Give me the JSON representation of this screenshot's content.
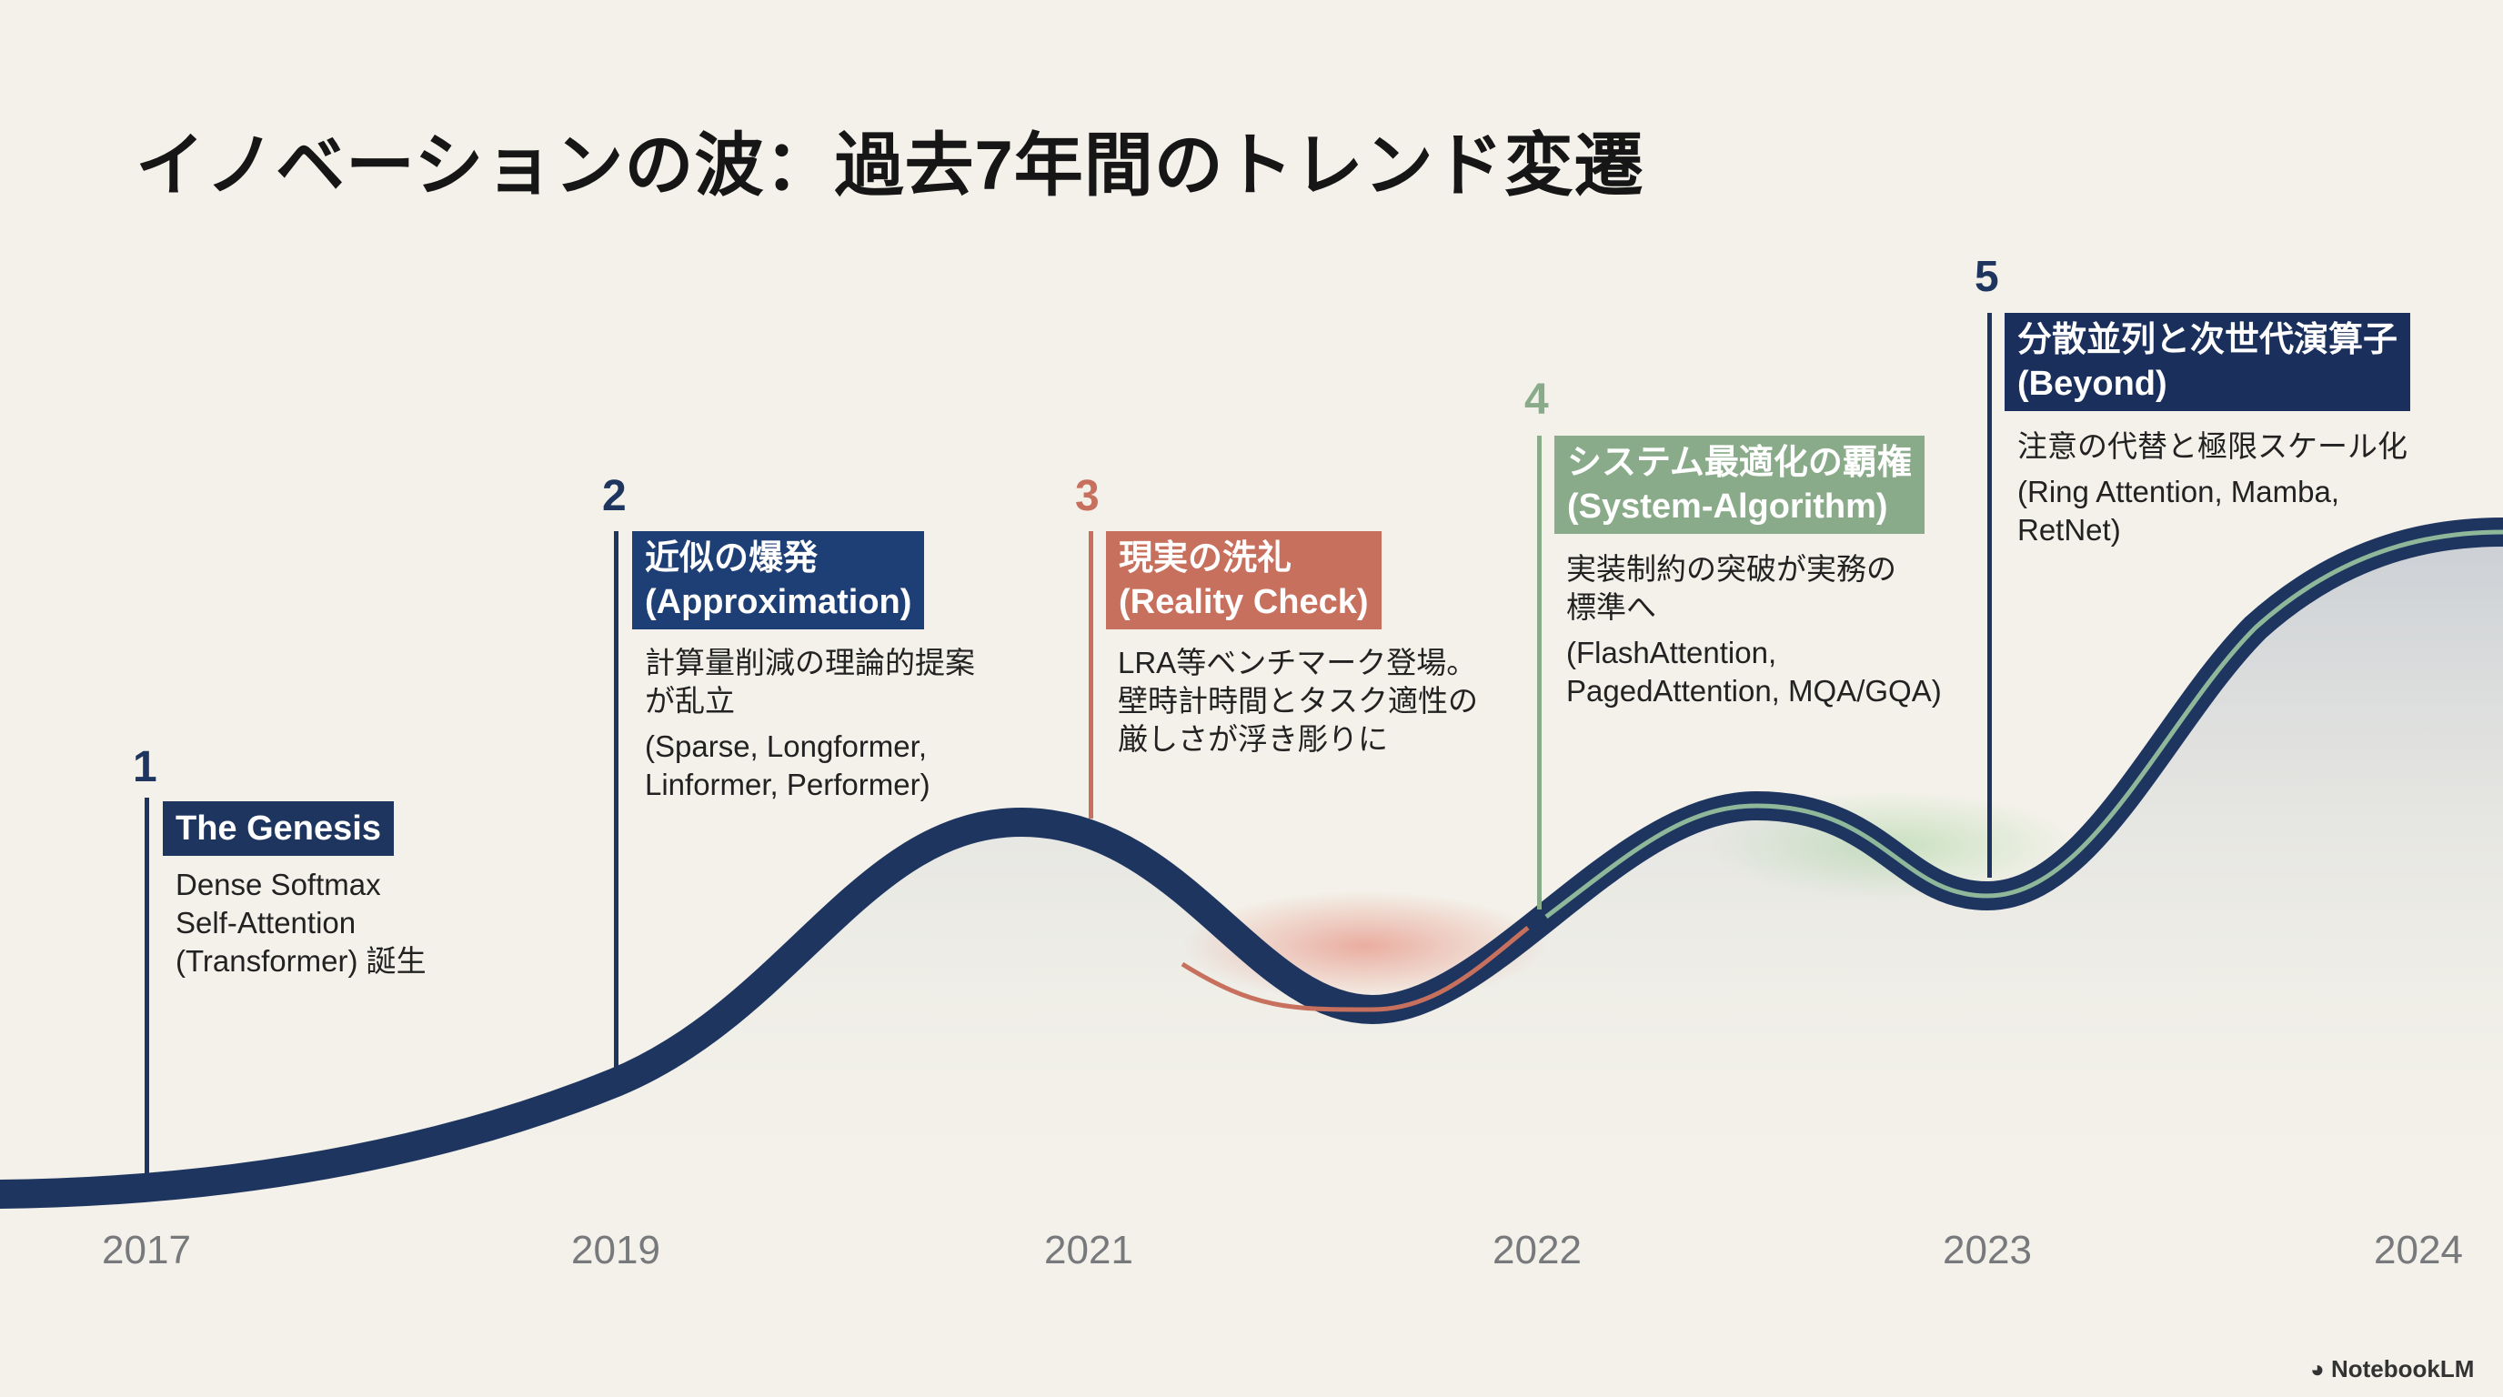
{
  "title": "イノベーションの波：過去7年間のトレンド変遷",
  "colors": {
    "navy": "#1e3560",
    "red": "#c8705e",
    "green": "#8aab8a",
    "background": "#f3f1e9"
  },
  "milestones": [
    {
      "number": "1",
      "heading": "The Genesis",
      "desc": [
        "Dense Softmax",
        "Self-Attention",
        "(Transformer) 誕生"
      ],
      "models": []
    },
    {
      "number": "2",
      "heading": "近似の爆発",
      "heading_en": "(Approximation)",
      "desc": [
        "計算量削減の理論的提案",
        "が乱立"
      ],
      "models": [
        "(Sparse, Longformer,",
        "Linformer, Performer)"
      ]
    },
    {
      "number": "3",
      "heading": "現実の洗礼",
      "heading_en": "(Reality Check)",
      "desc": [
        "LRA等ベンチマーク登場。",
        "壁時計時間とタスク適性の",
        "厳しさが浮き彫りに"
      ],
      "models": []
    },
    {
      "number": "4",
      "heading": "システム最適化の覇権",
      "heading_en": "(System-Algorithm)",
      "desc": [
        "実装制約の突破が実務の",
        "標準へ"
      ],
      "models": [
        "(FlashAttention,",
        "PagedAttention, MQA/GQA)"
      ]
    },
    {
      "number": "5",
      "heading": "分散並列と次世代演算子",
      "heading_en": "(Beyond)",
      "desc": [
        "注意の代替と極限スケール化"
      ],
      "models": [
        "(Ring Attention, Mamba,",
        "RetNet)"
      ]
    }
  ],
  "years": [
    "2017",
    "2019",
    "2021",
    "2022",
    "2023",
    "2024"
  ],
  "footer": {
    "brand": "NotebookLM",
    "icon": "notebooklm-logo-icon"
  }
}
